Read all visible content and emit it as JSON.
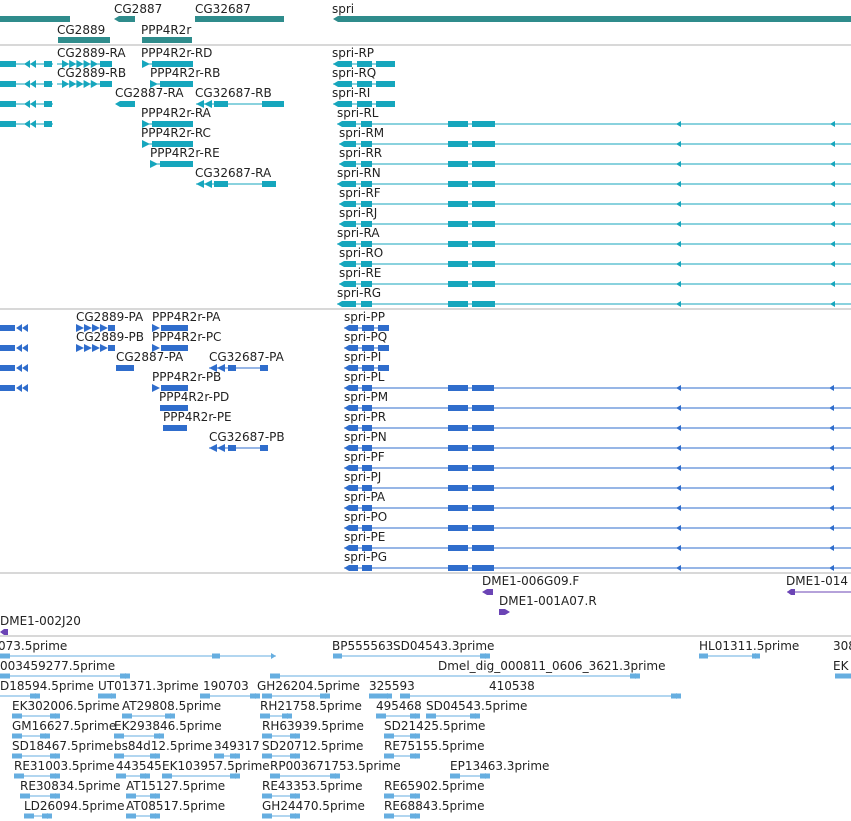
{
  "colors": {
    "gene": "#2f8c8c",
    "transcript": "#16a6bd",
    "protein": "#2f6dcc",
    "clone": "#6b44b5",
    "est": "#66aee0",
    "divider": "#b0b0b0"
  },
  "tracks": {
    "genes": [
      {
        "label": "CG2887"
      },
      {
        "label": "CG2889"
      },
      {
        "label": "PPP4R2r"
      },
      {
        "label": "CG32687"
      },
      {
        "label": "spri"
      }
    ],
    "transcripts": [
      {
        "label": "CG2889-RA"
      },
      {
        "label": "CG2889-RB"
      },
      {
        "label": "CG2887-RA"
      },
      {
        "label": "PPP4R2r-RD"
      },
      {
        "label": "PPP4R2r-RB"
      },
      {
        "label": "PPP4R2r-RA"
      },
      {
        "label": "PPP4R2r-RC"
      },
      {
        "label": "PPP4R2r-RE"
      },
      {
        "label": "CG32687-RB"
      },
      {
        "label": "CG32687-RA"
      },
      {
        "label": "spri-RP"
      },
      {
        "label": "spri-RQ"
      },
      {
        "label": "spri-RI"
      },
      {
        "label": "spri-RL"
      },
      {
        "label": "spri-RM"
      },
      {
        "label": "spri-RR"
      },
      {
        "label": "spri-RN"
      },
      {
        "label": "spri-RF"
      },
      {
        "label": "spri-RJ"
      },
      {
        "label": "spri-RA"
      },
      {
        "label": "spri-RO"
      },
      {
        "label": "spri-RE"
      },
      {
        "label": "spri-RG"
      }
    ],
    "proteins": [
      {
        "label": "CG2889-PA"
      },
      {
        "label": "CG2889-PB"
      },
      {
        "label": "CG2887-PA"
      },
      {
        "label": "PPP4R2r-PA"
      },
      {
        "label": "PPP4R2r-PC"
      },
      {
        "label": "PPP4R2r-PB"
      },
      {
        "label": "PPP4R2r-PD"
      },
      {
        "label": "PPP4R2r-PE"
      },
      {
        "label": "CG32687-PA"
      },
      {
        "label": "CG32687-PB"
      },
      {
        "label": "spri-PP"
      },
      {
        "label": "spri-PQ"
      },
      {
        "label": "spri-PI"
      },
      {
        "label": "spri-PL"
      },
      {
        "label": "spri-PM"
      },
      {
        "label": "spri-PR"
      },
      {
        "label": "spri-PN"
      },
      {
        "label": "spri-PF"
      },
      {
        "label": "spri-PJ"
      },
      {
        "label": "spri-PA"
      },
      {
        "label": "spri-PO"
      },
      {
        "label": "spri-PE"
      },
      {
        "label": "spri-PG"
      }
    ],
    "clones": [
      {
        "label": "DME1-006G09.F"
      },
      {
        "label": "DME1-014"
      },
      {
        "label": "DME1-001A07.R"
      },
      {
        "label": "DME1-002J20"
      }
    ],
    "ests": [
      {
        "label": "073.5prime"
      },
      {
        "label": "BP555563"
      },
      {
        "label": "SD04543.3prime"
      },
      {
        "label": "HL01311.5prime"
      },
      {
        "label": "308"
      },
      {
        "label": "003459277.5prime"
      },
      {
        "label": "Dmel_dig_000811_0606_3621.3prime"
      },
      {
        "label": "EK"
      },
      {
        "label": "D18594.5prime"
      },
      {
        "label": "UT01371.3prime"
      },
      {
        "label": "190703"
      },
      {
        "label": "GH26204.5prime"
      },
      {
        "label": "325593"
      },
      {
        "label": "410538"
      },
      {
        "label": "EK302006.5prime"
      },
      {
        "label": "AT29808.5prime"
      },
      {
        "label": "RH21758.5prime"
      },
      {
        "label": "495468"
      },
      {
        "label": "SD04543.5prime"
      },
      {
        "label": "GM16627.5prime"
      },
      {
        "label": "EK293846.5prime"
      },
      {
        "label": "RH63939.5prime"
      },
      {
        "label": "SD21425.5prime"
      },
      {
        "label": "SD18467.5prime"
      },
      {
        "label": "bs84d12.5prime"
      },
      {
        "label": "349317"
      },
      {
        "label": "SD20712.5prime"
      },
      {
        "label": "RE75155.5prime"
      },
      {
        "label": "RE31003.5prime"
      },
      {
        "label": "443545"
      },
      {
        "label": "EK103957.5prime"
      },
      {
        "label": "RP003671753.5prime"
      },
      {
        "label": "EP13463.3prime"
      },
      {
        "label": "RE30834.5prime"
      },
      {
        "label": "AT15127.5prime"
      },
      {
        "label": "RE43353.5prime"
      },
      {
        "label": "RE65902.5prime"
      },
      {
        "label": "LD26094.5prime"
      },
      {
        "label": "AT08517.5prime"
      },
      {
        "label": "GH24470.5prime"
      },
      {
        "label": "RE68843.5prime"
      }
    ]
  }
}
